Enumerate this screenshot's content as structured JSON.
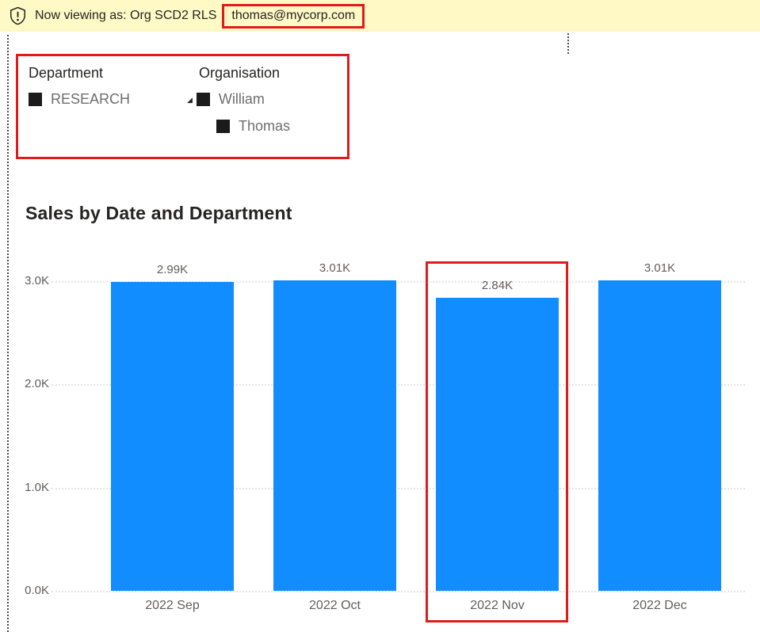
{
  "banner": {
    "message": "Now viewing as: Org SCD2 RLS",
    "email": "thomas@mycorp.com"
  },
  "slicers": {
    "department": {
      "title": "Department",
      "items": [
        {
          "label": "RESEARCH",
          "checked": true
        }
      ]
    },
    "organisation": {
      "title": "Organisation",
      "items": [
        {
          "label": "William",
          "checked": true,
          "level": 0,
          "expanded": true
        },
        {
          "label": "Thomas",
          "checked": true,
          "level": 1
        }
      ]
    }
  },
  "chart_data": {
    "type": "bar",
    "title": "Sales by Date and Department",
    "categories": [
      "2022 Sep",
      "2022 Oct",
      "2022 Nov",
      "2022 Dec"
    ],
    "values": [
      2990,
      3010,
      2840,
      3010
    ],
    "value_labels": [
      "2.99K",
      "3.01K",
      "2.84K",
      "3.01K"
    ],
    "xlabel": "",
    "ylabel": "",
    "ylim": [
      0,
      3000
    ],
    "y_ticks": [
      {
        "label": "3.0K",
        "value": 3000
      },
      {
        "label": "2.0K",
        "value": 2000
      },
      {
        "label": "1.0K",
        "value": 1000
      },
      {
        "label": "0.0K",
        "value": 0
      }
    ],
    "grid": "dotted-horizontal",
    "legend": "none",
    "bar_color": "#118DFF",
    "highlight_index": 2
  },
  "colors": {
    "banner_bg": "#FFF9C6",
    "annotation_red": "#E01B1B",
    "bar_blue": "#118DFF",
    "text_dark": "#252423",
    "text_gray": "#605E5C",
    "gridline": "#E4E4E4"
  }
}
